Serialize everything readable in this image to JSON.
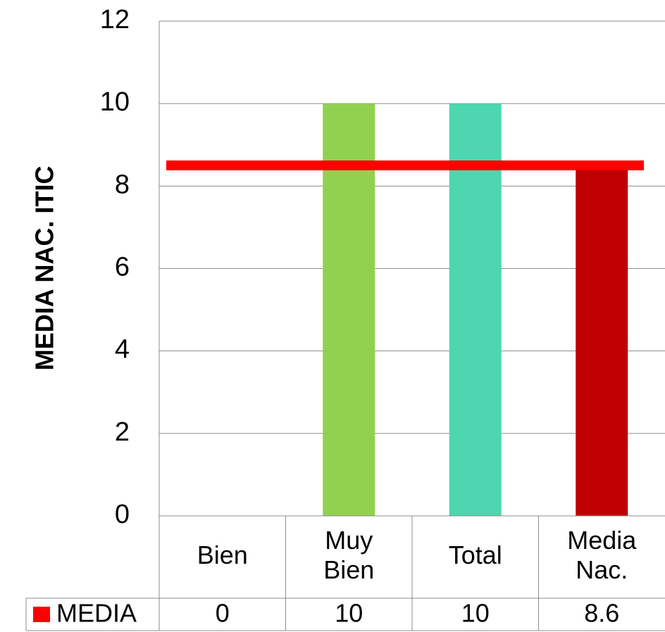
{
  "chart_data": {
    "type": "bar",
    "title": "",
    "xlabel": "",
    "ylabel": "MEDIA  NAC. ITIC",
    "ylim": [
      0,
      12
    ],
    "yticks": [
      0,
      2,
      4,
      6,
      8,
      10,
      12
    ],
    "grid": true,
    "categories": [
      [
        "Bien"
      ],
      [
        "Muy",
        "Bien"
      ],
      [
        "Total"
      ],
      [
        "Media",
        "Nac."
      ]
    ],
    "series": [
      {
        "name": "MEDIA",
        "values": [
          0,
          10,
          10,
          8.6
        ],
        "display_values": [
          "0",
          "10",
          "10",
          "8.6"
        ],
        "colors": [
          "#92d050",
          "#92d050",
          "#4dd6b0",
          "#c00000"
        ]
      }
    ],
    "reference_line": {
      "value": 8.5,
      "color": "#ff0000"
    },
    "legend": {
      "placement": "data-table",
      "color": "#ff0000"
    }
  }
}
